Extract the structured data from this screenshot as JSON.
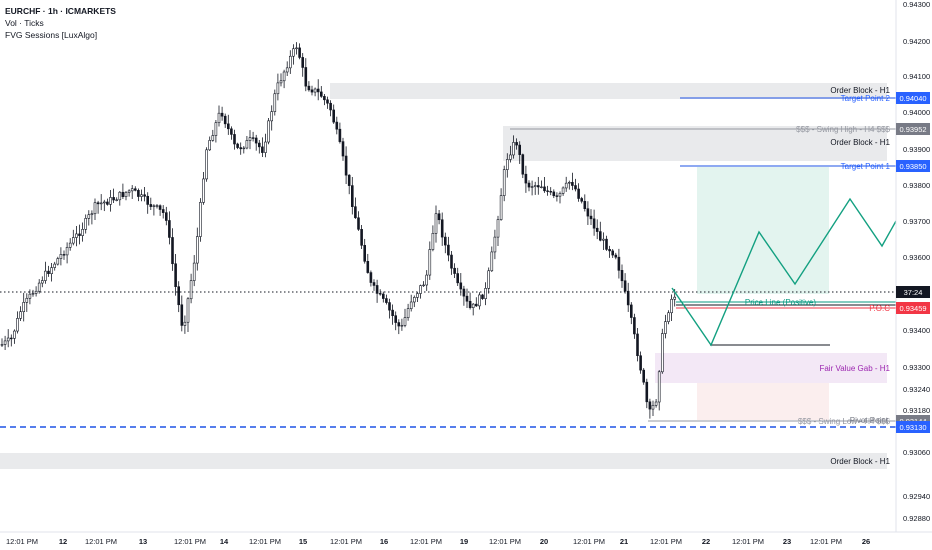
{
  "header": {
    "symbol": "EURCHF · 1h · ICMARKETS",
    "indicators": [
      "Vol · Ticks",
      "FVG Sessions [LuxAlgo]"
    ]
  },
  "price_axis": {
    "labels": [
      "0.94300",
      "0.94200",
      "0.94100",
      "0.94000",
      "0.93900",
      "0.93800",
      "0.93700",
      "0.93600",
      "0.93400",
      "0.93300",
      "0.93240",
      "0.93180",
      "0.93060",
      "0.92940",
      "0.92880"
    ],
    "badges": [
      {
        "text": "0.94040",
        "color": "#2962ff"
      },
      {
        "text": "0.93952",
        "color": "#787b86"
      },
      {
        "text": "0.93850",
        "color": "#2962ff"
      },
      {
        "text": "37:24",
        "color": "#131722"
      },
      {
        "text": "0.93459",
        "color": "#f23645"
      },
      {
        "text": "0.93144",
        "color": "#787b86"
      },
      {
        "text": "0.93130",
        "color": "#2962ff"
      }
    ]
  },
  "time_axis": {
    "labels": [
      "12:01 PM",
      "12",
      "12:01 PM",
      "13",
      "12:01 PM",
      "14",
      "12:01 PM",
      "15",
      "12:01 PM",
      "16",
      "12:01 PM",
      "19",
      "12:01 PM",
      "20",
      "12:01 PM",
      "21",
      "12:01 PM",
      "22",
      "12:01 PM",
      "23",
      "12:01 PM",
      "26"
    ]
  },
  "annotations": {
    "order_block_top": "Order Block - H1",
    "target_point_2": "Target Point 2",
    "swing_high": "$$$ - Swing High - H4 $$$",
    "order_block_mid": "Order Block - H1",
    "target_point_1": "Target Point 1",
    "price_line": "Price Line (Positive)",
    "poc": "P.O.C",
    "fvg": "Fair Value Gab - H1",
    "swing_low": "$$$ - Swing Low - H4 $$$",
    "pivot_point": "Pivot Point",
    "order_block_bottom": "Order Block - H1"
  },
  "colors": {
    "candle": "#131722",
    "blue_line": "#1e53e5",
    "red": "#f23645",
    "green": "#089981",
    "gray_zone": "#e6e7ea",
    "fvg_zone": "#efe4f5",
    "projection": "#13a081",
    "target_zone": "#e6f4f1"
  }
}
